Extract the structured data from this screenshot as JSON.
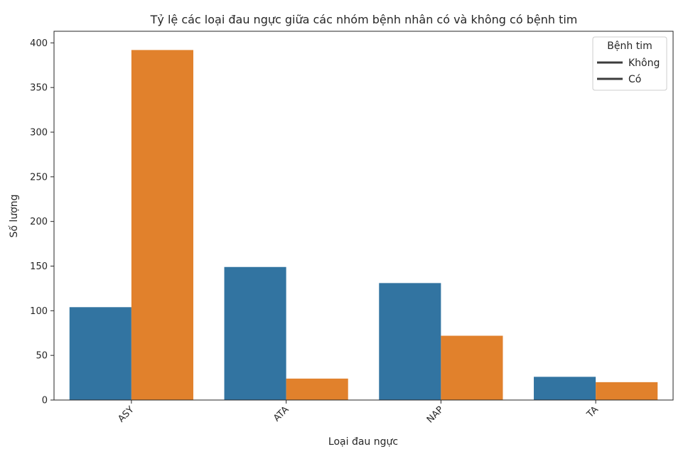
{
  "chart_data": {
    "type": "bar",
    "title": "Tỷ lệ các loại đau ngực giữa các nhóm bệnh nhân có và không có bệnh tim",
    "xlabel": "Loại đau ngực",
    "ylabel": "Số lượng",
    "categories": [
      "ASY",
      "ATA",
      "NAP",
      "TA"
    ],
    "series": [
      {
        "name": "Không",
        "color": "#3274a1",
        "values": [
          104,
          149,
          131,
          26
        ]
      },
      {
        "name": "Có",
        "color": "#e1812c",
        "values": [
          392,
          24,
          72,
          20
        ]
      }
    ],
    "ylim": [
      0,
      413
    ],
    "yticks": [
      "0",
      "50",
      "100",
      "150",
      "200",
      "250",
      "300",
      "350",
      "400"
    ],
    "grid": false,
    "legend": {
      "title": "Bệnh tim",
      "placement": "top-right",
      "entries": [
        "Không",
        "Có"
      ]
    }
  }
}
